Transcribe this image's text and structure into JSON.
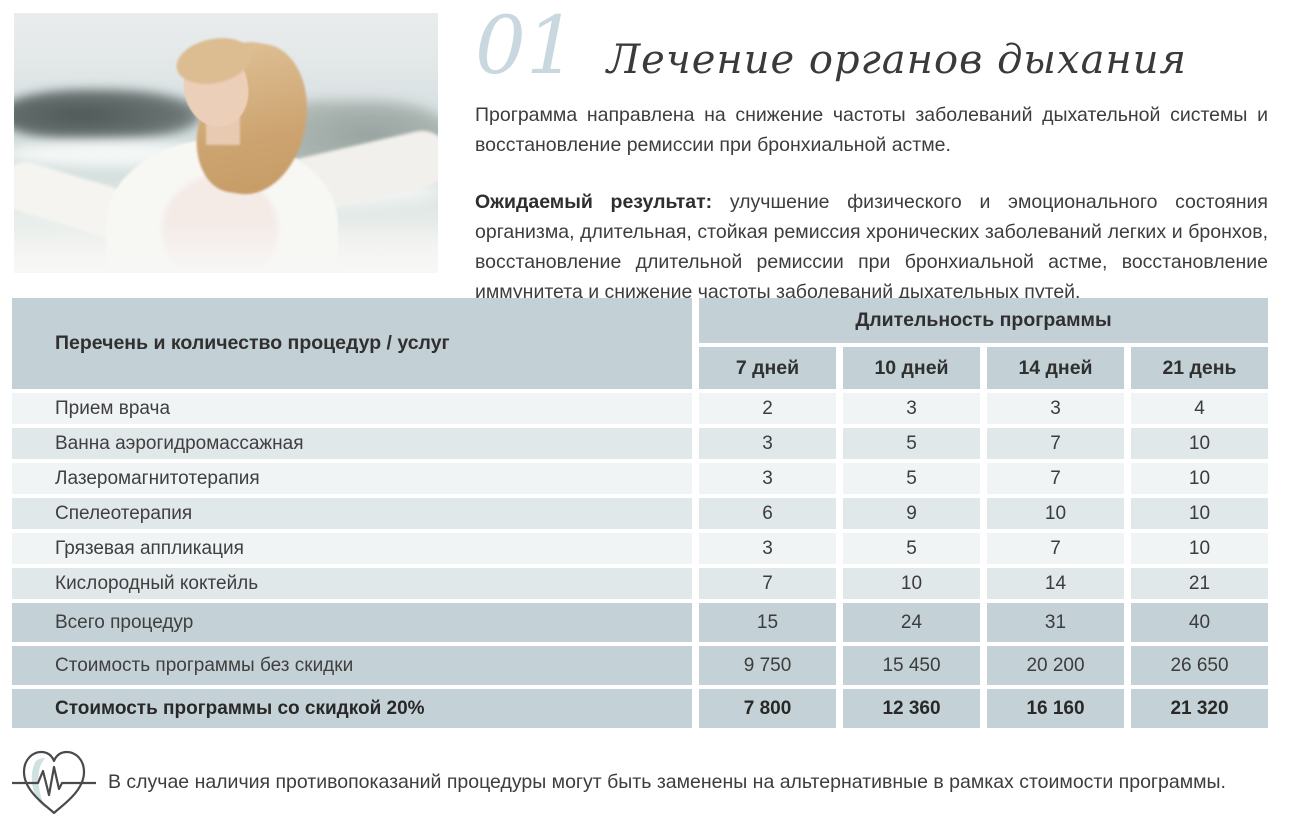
{
  "header": {
    "number": "01",
    "title": "Лечение органов дыхания",
    "intro": "Программа направлена на снижение частоты заболеваний дыхательной системы и восстановление ремиссии при бронхиальной астме.",
    "expected_label": "Ожидаемый результат:",
    "expected_text": " улучшение физического и эмоционального состояния организма, длительная, стойкая ремиссия хронических заболеваний легких и бронхов, восстановление длительной ремиссии при бронхиальной астме, восстановление иммунитета и снижение частоты заболеваний дыхательных путей."
  },
  "photo": {
    "description": "woman with outstretched arms on a seashore"
  },
  "table": {
    "col_header": "Перечень и количество процедур / услуг",
    "group_header": "Длительность программы",
    "duration_headers": [
      "7 дней",
      "10 дней",
      "14 дней",
      "21 день"
    ],
    "rows": [
      {
        "name": "Прием врача",
        "values": [
          "2",
          "3",
          "3",
          "4"
        ],
        "style": "light"
      },
      {
        "name": "Ванна аэрогидромассажная",
        "values": [
          "3",
          "5",
          "7",
          "10"
        ],
        "style": "medium"
      },
      {
        "name": "Лазеромагнитотерапия",
        "values": [
          "3",
          "5",
          "7",
          "10"
        ],
        "style": "light"
      },
      {
        "name": "Спелеотерапия",
        "values": [
          "6",
          "9",
          "10",
          "10"
        ],
        "style": "medium"
      },
      {
        "name": "Грязевая аппликация",
        "values": [
          "3",
          "5",
          "7",
          "10"
        ],
        "style": "light"
      },
      {
        "name": "Кислородный коктейль",
        "values": [
          "7",
          "10",
          "14",
          "21"
        ],
        "style": "medium"
      },
      {
        "name": "Всего процедур",
        "values": [
          "15",
          "24",
          "31",
          "40"
        ],
        "style": "dark"
      },
      {
        "name": "Стоимость программы без скидки",
        "values": [
          "9 750",
          "15 450",
          "20 200",
          "26 650"
        ],
        "style": "dark"
      },
      {
        "name": "Стоимость программы со скидкой 20%",
        "values": [
          "7 800",
          "12 360",
          "16 160",
          "21 320"
        ],
        "style": "dark bold"
      }
    ]
  },
  "footer": {
    "icon": "heartbeat-heart-icon",
    "note": "В случае наличия противопоказаний процедуры могут быть заменены на альтернативные в рамках стоимости программы."
  },
  "colors": {
    "table_header_bg": "#c3d0d6",
    "row_light_bg": "#f0f4f4",
    "row_medium_bg": "#e1e8ea",
    "row_total_bg": "#c4d2d7",
    "page_number": "#c9d8de",
    "text": "#3c3c3c",
    "icon_highlight": "#cfe2df"
  }
}
